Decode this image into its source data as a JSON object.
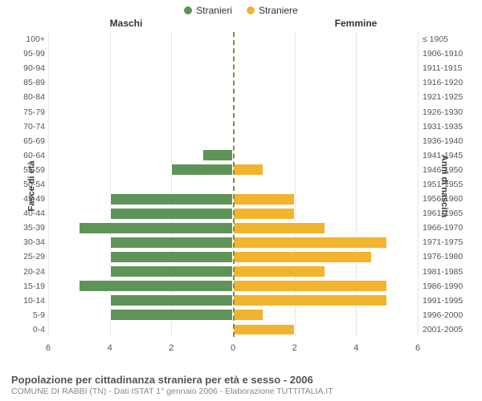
{
  "legend": {
    "male": {
      "label": "Stranieri",
      "color": "#5f9458"
    },
    "female": {
      "label": "Straniere",
      "color": "#f2b42e"
    }
  },
  "headers": {
    "left": "Maschi",
    "right": "Femmine",
    "axis_left": "Fasce di età",
    "axis_right": "Anni di nascita"
  },
  "chart": {
    "type": "population-pyramid",
    "xmax": 6,
    "xticks": [
      0,
      2,
      4,
      6
    ],
    "grid_color": "#e6e6e6",
    "center_line_color": "#888844",
    "background_color": "#ffffff",
    "bar_height_ratio": 0.82,
    "age_labels": [
      "0-4",
      "5-9",
      "10-14",
      "15-19",
      "20-24",
      "25-29",
      "30-34",
      "35-39",
      "40-44",
      "45-49",
      "50-54",
      "55-59",
      "60-64",
      "65-69",
      "70-74",
      "75-79",
      "80-84",
      "85-89",
      "90-94",
      "95-99",
      "100+"
    ],
    "birth_labels": [
      "2001-2005",
      "1996-2000",
      "1991-1995",
      "1986-1990",
      "1981-1985",
      "1976-1980",
      "1971-1975",
      "1966-1970",
      "1961-1965",
      "1956-1960",
      "1951-1955",
      "1946-1950",
      "1941-1945",
      "1936-1940",
      "1931-1935",
      "1926-1930",
      "1921-1925",
      "1916-1920",
      "1911-1915",
      "1906-1910",
      "≤ 1905"
    ],
    "male": [
      0,
      4,
      4,
      5,
      4,
      4,
      4,
      5,
      4,
      4,
      0,
      2,
      1,
      0,
      0,
      0,
      0,
      0,
      0,
      0,
      0
    ],
    "female": [
      2,
      1,
      5,
      5,
      3,
      4.5,
      5,
      3,
      2,
      2,
      0,
      1,
      0,
      0,
      0,
      0,
      0,
      0,
      0,
      0,
      0
    ]
  },
  "caption": {
    "title": "Popolazione per cittadinanza straniera per età e sesso - 2006",
    "subtitle": "COMUNE DI RABBI (TN) - Dati ISTAT 1° gennaio 2006 - Elaborazione TUTTITALIA.IT"
  }
}
